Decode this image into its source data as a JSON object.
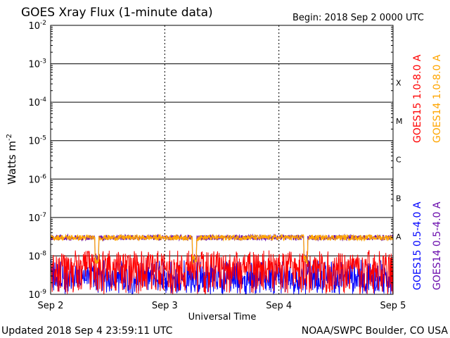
{
  "chart_data": {
    "type": "line",
    "title": "GOES Xray Flux (1-minute data)",
    "begin_label": "Begin:  2018 Sep 2 0000 UTC",
    "xlabel": "Universal Time",
    "ylabel": "Watts m",
    "ylabel_superscript": "-2",
    "yscale": "log",
    "ylim": [
      1e-09,
      0.01
    ],
    "xlim": [
      "2018-09-02",
      "2018-09-05"
    ],
    "x_ticks": [
      "Sep 2",
      "Sep 3",
      "Sep 4",
      "Sep 5"
    ],
    "y_ticks": [
      {
        "base": "10",
        "exp": "-2"
      },
      {
        "base": "10",
        "exp": "-3"
      },
      {
        "base": "10",
        "exp": "-4"
      },
      {
        "base": "10",
        "exp": "-5"
      },
      {
        "base": "10",
        "exp": "-6"
      },
      {
        "base": "10",
        "exp": "-7"
      },
      {
        "base": "10",
        "exp": "-8"
      },
      {
        "base": "10",
        "exp": "-9"
      }
    ],
    "flare_classes": [
      {
        "label": "X",
        "flux": 0.0001
      },
      {
        "label": "M",
        "flux": 1e-05
      },
      {
        "label": "C",
        "flux": 1e-06
      },
      {
        "label": "B",
        "flux": 1e-07
      },
      {
        "label": "A",
        "flux": 1e-08
      }
    ],
    "series": [
      {
        "name": "GOES15 1.0-8.0 A",
        "color": "#ff0000",
        "typical_flux": 5e-09,
        "range": [
          1e-09,
          1.2e-08
        ]
      },
      {
        "name": "GOES14 1.0-8.0 A",
        "color": "#ffa500",
        "typical_flux": 3e-08,
        "range": [
          1e-08,
          4e-08
        ]
      },
      {
        "name": "GOES15 0.5-4.0 A",
        "color": "#0000ff",
        "typical_flux": 2e-09,
        "range": [
          1e-09,
          8e-09
        ]
      },
      {
        "name": "GOES14 0.5-4.0 A",
        "color": "#6a0dad",
        "typical_flux": 3e-08,
        "range": [
          1e-08,
          4e-08
        ]
      }
    ],
    "grid": true
  },
  "footer": {
    "updated": "Updated 2018 Sep  4 23:59:11 UTC",
    "credit": "NOAA/SWPC Boulder, CO USA"
  }
}
